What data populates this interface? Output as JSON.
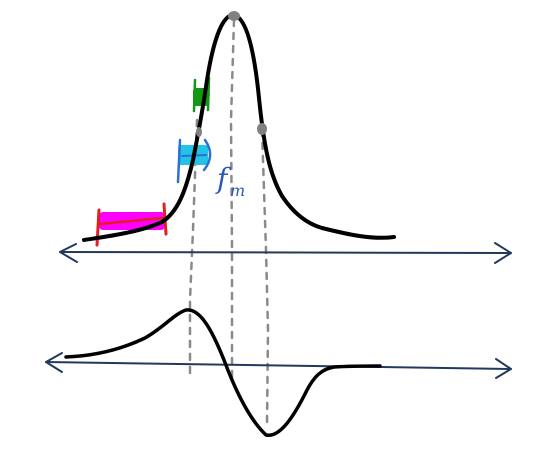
{
  "labels": {
    "f_m": "f",
    "f_m_sub": "m"
  },
  "colors": {
    "curve": "#000000",
    "axis": "#23395d",
    "guide": "#8a8a8a",
    "dot": "#808080",
    "magenta": "#ff00ff",
    "red": "#e02020",
    "cyan": "#22c3e6",
    "blue": "#2c6fd6",
    "green": "#119911",
    "label": "#2c57b8"
  }
}
